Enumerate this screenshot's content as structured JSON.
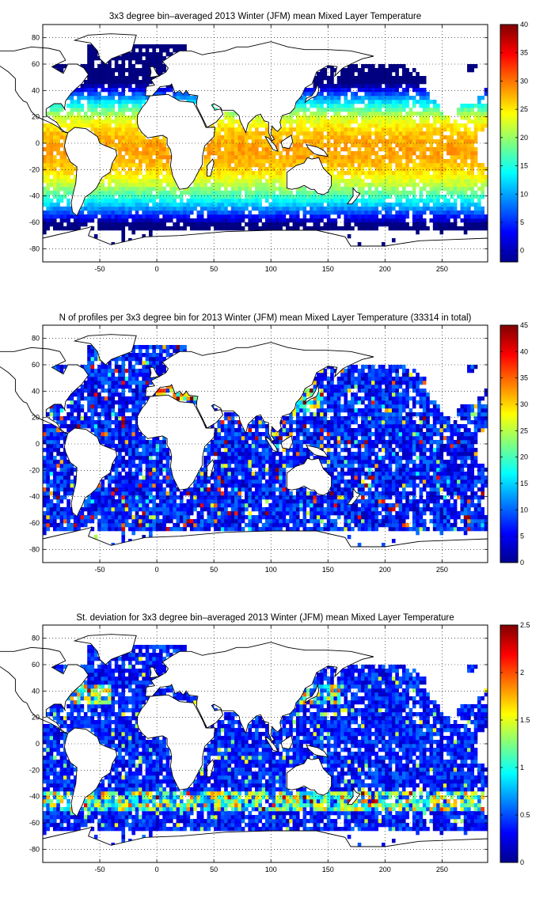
{
  "chart_data": [
    {
      "type": "heatmap",
      "title": "3x3 degree bin–averaged 2013 Winter (JFM) mean Mixed Layer Temperature",
      "xlabel": "",
      "ylabel": "",
      "xlim": [
        -100,
        290
      ],
      "ylim": [
        -90,
        90
      ],
      "x_ticks": [
        "-50",
        "0",
        "50",
        "100",
        "150",
        "200",
        "250"
      ],
      "y_ticks": [
        "80",
        "60",
        "40",
        "20",
        "0",
        "-20",
        "-40",
        "-60",
        "-80"
      ],
      "colorbar": {
        "min": -2,
        "max": 40,
        "ticks": [
          "40",
          "35",
          "30",
          "25",
          "20",
          "15",
          "10",
          "5",
          "0"
        ]
      },
      "colormap": "jet",
      "bin_size_deg": 3,
      "grid": true,
      "field": "temperature"
    },
    {
      "type": "heatmap",
      "title": "N of profiles per 3x3 degree bin for 2013 Winter (JFM) mean Mixed Layer Temperature  (33314 in total)",
      "xlabel": "",
      "ylabel": "",
      "xlim": [
        -100,
        290
      ],
      "ylim": [
        -90,
        90
      ],
      "x_ticks": [
        "-50",
        "0",
        "50",
        "100",
        "150",
        "200",
        "250"
      ],
      "y_ticks": [
        "80",
        "60",
        "40",
        "20",
        "0",
        "-20",
        "-40",
        "-60",
        "-80"
      ],
      "colorbar": {
        "min": 0,
        "max": 45,
        "ticks": [
          "45",
          "40",
          "35",
          "30",
          "25",
          "20",
          "15",
          "10",
          "5",
          "0"
        ]
      },
      "colormap": "jet",
      "bin_size_deg": 3,
      "grid": true,
      "field": "count"
    },
    {
      "type": "heatmap",
      "title": "St. deviation for 3x3 degree bin–averaged 2013 Winter (JFM) mean Mixed Layer Temperature",
      "xlabel": "",
      "ylabel": "",
      "xlim": [
        -100,
        290
      ],
      "ylim": [
        -90,
        90
      ],
      "x_ticks": [
        "-50",
        "0",
        "50",
        "100",
        "150",
        "200",
        "250"
      ],
      "y_ticks": [
        "80",
        "60",
        "40",
        "20",
        "0",
        "-20",
        "-40",
        "-60",
        "-80"
      ],
      "colorbar": {
        "min": 0,
        "max": 2.5,
        "ticks": [
          "2.5",
          "2",
          "1.5",
          "1",
          "0.5",
          "0"
        ]
      },
      "colormap": "jet",
      "bin_size_deg": 3,
      "grid": true,
      "field": "stdev"
    }
  ]
}
